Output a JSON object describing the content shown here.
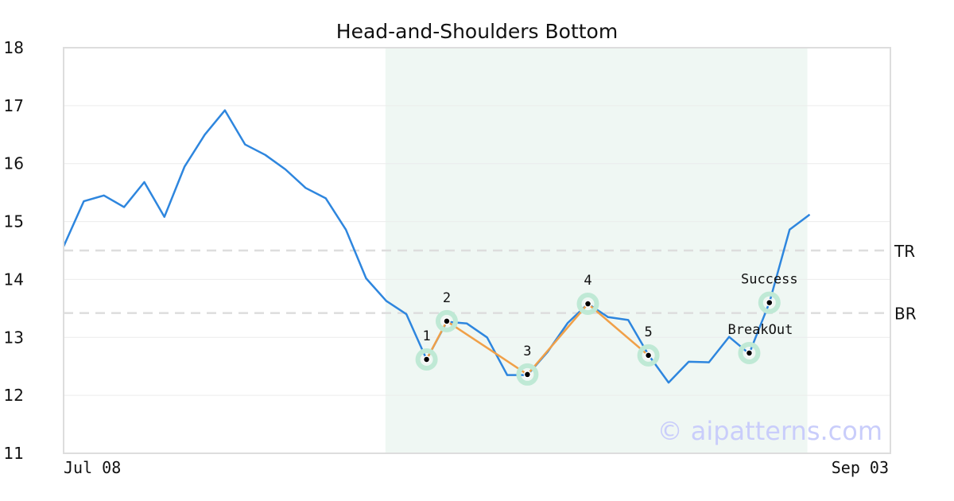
{
  "chart_data": {
    "type": "line",
    "title": "Head-and-Shoulders Bottom",
    "xlabel": "",
    "ylabel": "",
    "ylim": [
      11,
      18
    ],
    "yticks": [
      11,
      12,
      13,
      14,
      15,
      16,
      17,
      18
    ],
    "x_tick_labels": [
      {
        "index": 0,
        "label": "Jul 08"
      },
      {
        "index": 41,
        "label": "Sep 03"
      }
    ],
    "grid": true,
    "series": [
      {
        "color": "#2e86de",
        "values": [
          14.57,
          15.35,
          15.45,
          15.25,
          15.68,
          15.08,
          15.95,
          16.5,
          16.92,
          16.33,
          16.15,
          15.9,
          15.58,
          15.4,
          14.86,
          14.02,
          13.63,
          13.4,
          12.62,
          13.27,
          13.24,
          13.0,
          12.35,
          12.35,
          12.75,
          13.25,
          13.58,
          13.35,
          13.3,
          12.7,
          12.22,
          12.58,
          12.57,
          13.01,
          12.72,
          13.6,
          14.86,
          15.12
        ]
      }
    ],
    "highlight_region": {
      "from_index": 16,
      "to_index": 37,
      "color": "#eff7f3"
    },
    "reference_lines": [
      {
        "label": "TR",
        "value": 14.5
      },
      {
        "label": "BR",
        "value": 13.42
      }
    ],
    "pattern_points": [
      {
        "label": "1",
        "index": 18,
        "value": 12.62
      },
      {
        "label": "2",
        "index": 19,
        "value": 13.28
      },
      {
        "label": "3",
        "index": 23,
        "value": 12.36
      },
      {
        "label": "4",
        "index": 26,
        "value": 13.58
      },
      {
        "label": "5",
        "index": 29,
        "value": 12.69
      }
    ],
    "signal_points": [
      {
        "label": "BreakOut",
        "index": 34,
        "value": 12.73
      },
      {
        "label": "Success",
        "index": 35,
        "value": 13.6
      }
    ],
    "colors": {
      "line": "#2e86de",
      "pattern_line": "#f0a048",
      "marker_halo": "#bfe9d5",
      "reference": "#dddddd"
    },
    "watermark": "© aipatterns.com"
  }
}
